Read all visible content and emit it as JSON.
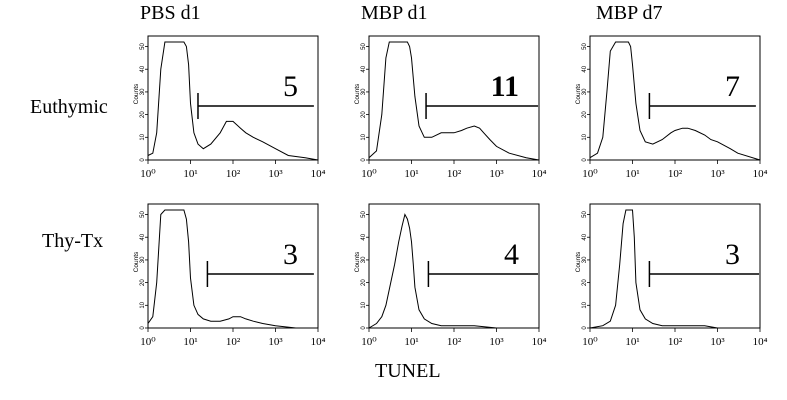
{
  "figure": {
    "x_axis_label": "TUNEL",
    "columns": [
      "PBS d1",
      "MBP d1",
      "MBP d7"
    ],
    "rows": [
      "Euthymic",
      "Thy-Tx"
    ]
  },
  "chart_data": {
    "type": "line",
    "x_scale": "log",
    "xlim": [
      1,
      10000
    ],
    "x_tick_labels": [
      "10⁰",
      "10¹",
      "10²",
      "10³",
      "10⁴"
    ],
    "y_tick_labels": [
      "0",
      "10",
      "20",
      "30",
      "40",
      "50"
    ],
    "ylim": [
      0,
      52
    ],
    "ylabel": "Counts",
    "panels": [
      {
        "row": "Euthymic",
        "column": "PBS d1",
        "gate_percent": "5",
        "gate_bold": false,
        "gate_x": [
          15,
          8000
        ],
        "x": [
          1,
          1.3,
          1.6,
          2,
          2.5,
          3,
          4,
          5,
          6,
          7,
          8,
          9,
          10,
          12,
          15,
          20,
          30,
          50,
          70,
          100,
          150,
          200,
          300,
          500,
          1000,
          2000,
          5000,
          10000
        ],
        "y": [
          2,
          3,
          12,
          40,
          52,
          52,
          52,
          52,
          52,
          52,
          50,
          42,
          25,
          12,
          7,
          5,
          7,
          12,
          17,
          17,
          14,
          12,
          10,
          8,
          5,
          2,
          1,
          0
        ]
      },
      {
        "row": "Euthymic",
        "column": "MBP d1",
        "gate_percent": "11",
        "gate_bold": true,
        "gate_x": [
          22,
          9500
        ],
        "x": [
          1,
          1.5,
          2,
          2.5,
          3,
          4,
          5,
          6,
          7,
          8,
          9,
          10,
          12,
          15,
          20,
          30,
          50,
          80,
          100,
          150,
          200,
          300,
          400,
          500,
          700,
          1000,
          2000,
          5000,
          10000
        ],
        "y": [
          1,
          4,
          20,
          45,
          52,
          52,
          52,
          52,
          52,
          52,
          50,
          45,
          28,
          15,
          10,
          10,
          12,
          12,
          12,
          13,
          14,
          15,
          14,
          12,
          9,
          6,
          3,
          1,
          0
        ]
      },
      {
        "row": "Euthymic",
        "column": "MBP d7",
        "gate_percent": "7",
        "gate_bold": false,
        "gate_x": [
          25,
          8000
        ],
        "x": [
          1,
          1.5,
          2,
          2.5,
          3,
          4,
          5,
          6,
          7,
          8,
          9,
          10,
          12,
          15,
          20,
          30,
          50,
          80,
          100,
          150,
          200,
          300,
          500,
          700,
          1000,
          2000,
          3000,
          10000
        ],
        "y": [
          1,
          3,
          10,
          30,
          48,
          52,
          52,
          52,
          52,
          52,
          50,
          42,
          25,
          13,
          8,
          7,
          9,
          12,
          13,
          14,
          14,
          13,
          11,
          9,
          8,
          5,
          3,
          0
        ]
      },
      {
        "row": "Thy-Tx",
        "column": "PBS d1",
        "gate_percent": "3",
        "gate_bold": false,
        "gate_x": [
          25,
          8000
        ],
        "x": [
          1,
          1.3,
          1.6,
          2,
          2.5,
          3,
          4,
          5,
          6,
          7,
          8,
          9,
          10,
          12,
          15,
          20,
          30,
          50,
          80,
          100,
          150,
          200,
          300,
          500,
          1000,
          3000,
          10000
        ],
        "y": [
          2,
          5,
          20,
          50,
          52,
          52,
          52,
          52,
          52,
          52,
          48,
          38,
          22,
          10,
          6,
          4,
          3,
          3,
          4,
          5,
          5,
          4,
          3,
          2,
          1,
          0,
          0
        ]
      },
      {
        "row": "Thy-Tx",
        "column": "MBP d1",
        "gate_percent": "4",
        "gate_bold": false,
        "gate_x": [
          25,
          9500
        ],
        "x": [
          1,
          1.5,
          2,
          2.5,
          3,
          4,
          5,
          6,
          7,
          8,
          9,
          10,
          11,
          12,
          15,
          20,
          30,
          50,
          100,
          300,
          1000,
          10000
        ],
        "y": [
          0,
          2,
          5,
          10,
          17,
          28,
          38,
          45,
          50,
          48,
          44,
          38,
          28,
          18,
          8,
          4,
          2,
          1,
          1,
          1,
          0,
          0
        ]
      },
      {
        "row": "Thy-Tx",
        "column": "MBP d7",
        "gate_percent": "3",
        "gate_bold": false,
        "gate_x": [
          25,
          9500
        ],
        "x": [
          1,
          2,
          3,
          4,
          5,
          6,
          7,
          8,
          9,
          10,
          11,
          12,
          15,
          20,
          30,
          50,
          100,
          200,
          500,
          1000,
          3000,
          10000
        ],
        "y": [
          0,
          1,
          3,
          10,
          28,
          46,
          52,
          52,
          52,
          52,
          40,
          20,
          8,
          4,
          2,
          1,
          1,
          1,
          1,
          0,
          0,
          0
        ]
      }
    ]
  }
}
